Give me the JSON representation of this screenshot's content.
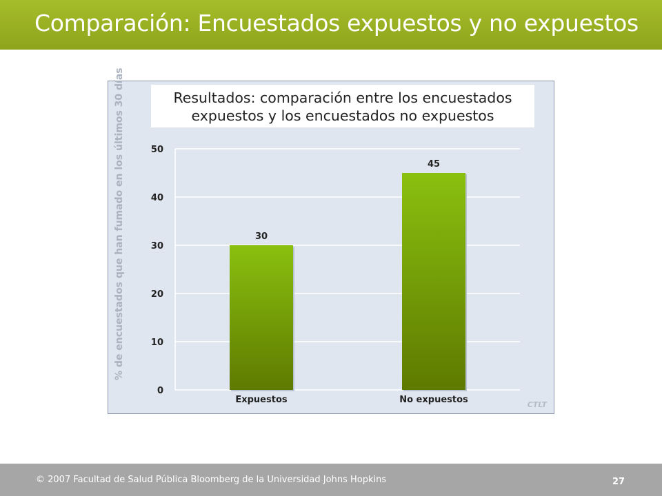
{
  "slide": {
    "title": "Comparación: Encuestados expuestos y no expuestos"
  },
  "footer": {
    "copyright": "© 2007 Facultad de Salud Pública Bloomberg de la Universidad Johns Hopkins",
    "page_number": "27"
  },
  "chart_watermark": "CTLT",
  "colors": {
    "title_bar": "#9cb324",
    "bar_top": "#8ac00f",
    "bar_bottom": "#5e7a00",
    "chart_background": "#dfe6ef",
    "footer": "#a6a6a6"
  },
  "chart_data": {
    "type": "bar",
    "title": "Resultados: comparación entre los encuestados\nexpuestos y los encuestados no expuestos",
    "xlabel": "",
    "ylabel": "% de encuestados que han fumado en los últimos 30 días",
    "categories": [
      "Expuestos",
      "No expuestos"
    ],
    "values": [
      30,
      45
    ],
    "data_labels": [
      "30",
      "45"
    ],
    "ylim": [
      0,
      50
    ],
    "yticks": [
      0,
      10,
      20,
      30,
      40,
      50
    ],
    "grid": true,
    "legend": "none"
  }
}
